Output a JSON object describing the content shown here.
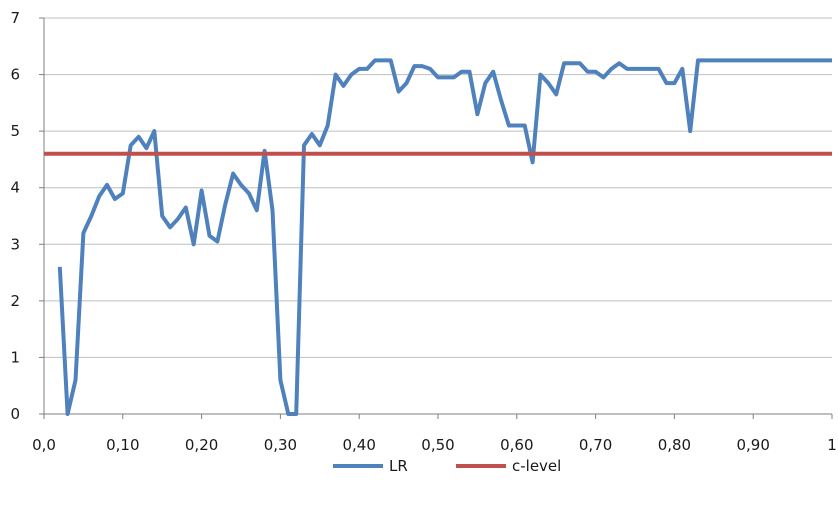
{
  "chart_data": {
    "type": "line",
    "x_ticks": [
      "0,0",
      "0,10",
      "0,20",
      "0,30",
      "0,40",
      "0,50",
      "0,60",
      "0,70",
      "0,80",
      "0,90",
      "1"
    ],
    "y_ticks": [
      "0",
      "1",
      "2",
      "3",
      "4",
      "5",
      "6",
      "7"
    ],
    "xlim": [
      0,
      1
    ],
    "ylim": [
      0,
      7
    ],
    "grid": "horizontal",
    "legend_position": "bottom",
    "series": [
      {
        "name": "LR",
        "color": "#4f81bd",
        "x": [
          0.02,
          0.03,
          0.04,
          0.05,
          0.06,
          0.07,
          0.08,
          0.09,
          0.1,
          0.11,
          0.12,
          0.13,
          0.14,
          0.15,
          0.16,
          0.17,
          0.18,
          0.19,
          0.2,
          0.21,
          0.22,
          0.23,
          0.24,
          0.25,
          0.26,
          0.27,
          0.28,
          0.29,
          0.3,
          0.31,
          0.32,
          0.33,
          0.34,
          0.35,
          0.36,
          0.37,
          0.38,
          0.39,
          0.4,
          0.41,
          0.42,
          0.43,
          0.44,
          0.45,
          0.46,
          0.47,
          0.48,
          0.49,
          0.5,
          0.51,
          0.52,
          0.53,
          0.54,
          0.55,
          0.56,
          0.57,
          0.58,
          0.59,
          0.6,
          0.61,
          0.62,
          0.63,
          0.64,
          0.65,
          0.66,
          0.67,
          0.68,
          0.69,
          0.7,
          0.71,
          0.72,
          0.73,
          0.74,
          0.75,
          0.76,
          0.77,
          0.78,
          0.79,
          0.8,
          0.81,
          0.82,
          0.83,
          0.84,
          0.85,
          0.9,
          0.95,
          1.0
        ],
        "y": [
          2.6,
          0.0,
          0.6,
          3.2,
          3.5,
          3.85,
          4.05,
          3.8,
          3.9,
          4.75,
          4.9,
          4.7,
          5.0,
          3.5,
          3.3,
          3.45,
          3.65,
          3.0,
          3.95,
          3.15,
          3.05,
          3.7,
          4.25,
          4.05,
          3.9,
          3.6,
          4.65,
          3.6,
          0.6,
          0.0,
          0.0,
          4.75,
          4.95,
          4.75,
          5.1,
          6.0,
          5.8,
          6.0,
          6.1,
          6.1,
          6.25,
          6.25,
          6.25,
          5.7,
          5.85,
          6.15,
          6.15,
          6.1,
          5.95,
          5.95,
          5.95,
          6.05,
          6.05,
          5.3,
          5.85,
          6.05,
          5.55,
          5.1,
          5.1,
          5.1,
          4.45,
          6.0,
          5.85,
          5.65,
          6.2,
          6.2,
          6.2,
          6.05,
          6.05,
          5.95,
          6.1,
          6.2,
          6.1,
          6.1,
          6.1,
          6.1,
          6.1,
          5.85,
          5.85,
          6.1,
          5.0,
          6.25,
          6.25,
          6.25,
          6.25,
          6.25,
          6.25
        ]
      },
      {
        "name": "c-level",
        "color": "#c0504d",
        "x": [
          0.0,
          1.0
        ],
        "y": [
          4.6,
          4.6
        ]
      }
    ]
  }
}
